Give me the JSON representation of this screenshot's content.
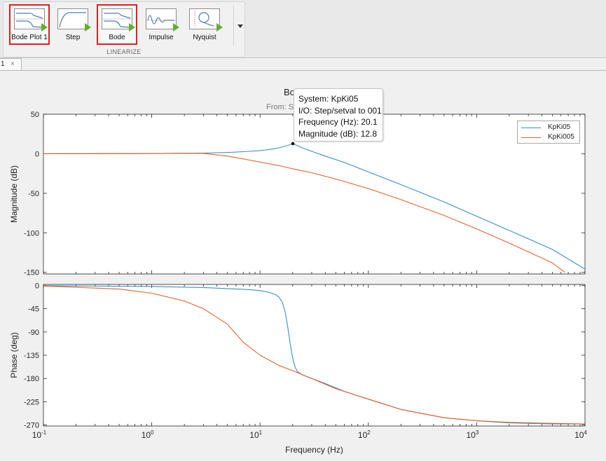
{
  "toolstrip": {
    "section_label": "LINEARIZE",
    "buttons": [
      {
        "label": "Bode Plot 1",
        "icon": "bode-plot-icon",
        "selected": true
      },
      {
        "label": "Step",
        "icon": "step-response-icon",
        "selected": false
      },
      {
        "label": "Bode",
        "icon": "bode-plot-icon",
        "selected": true
      },
      {
        "label": "Impulse",
        "icon": "impulse-response-icon",
        "selected": false
      },
      {
        "label": "Nyquist",
        "icon": "nyquist-plot-icon",
        "selected": false
      }
    ],
    "more_icon": "chevron-down-icon"
  },
  "doc_tab": {
    "label": "1",
    "close_glyph": "×"
  },
  "figure": {
    "title_fragment": "Bo",
    "subtitle_fragment": "From: S"
  },
  "datatip": {
    "system": "System: KpKi05",
    "io": "I/O: Step/setval to 001",
    "frequency": "Frequency (Hz): 20.1",
    "magnitude": "Magnitude (dB): 12.8"
  },
  "legend": [
    {
      "label": "KpKi05",
      "color": "#3b8fc4"
    },
    {
      "label": "KpKi005",
      "color": "#e2622f"
    }
  ],
  "colors": {
    "series_1": "#3b8fc4",
    "series_2": "#e2622f",
    "selection": "#e0201b"
  },
  "chart_data": [
    {
      "type": "line",
      "ylabel": "Magnitude (dB)",
      "xscale": "log",
      "xlim": [
        0.1,
        10000
      ],
      "ylim": [
        -152,
        50
      ],
      "yticks": [
        50,
        0,
        -50,
        -100,
        -150
      ],
      "grid": false,
      "legend_placement": "top-right",
      "series": [
        {
          "name": "KpKi05",
          "x": [
            0.1,
            1,
            3,
            5,
            8,
            10,
            12,
            15,
            18,
            20.1,
            25,
            30,
            40,
            60,
            100,
            200,
            500,
            1000,
            2000,
            5000,
            10000
          ],
          "y": [
            0,
            0.2,
            0.8,
            1.5,
            3,
            4,
            5.2,
            7.5,
            10.5,
            12.8,
            7,
            3,
            -3,
            -11,
            -23,
            -39,
            -61,
            -79,
            -97,
            -121,
            -146
          ]
        },
        {
          "name": "KpKi005",
          "x": [
            0.1,
            1,
            2,
            3,
            5,
            8,
            10,
            15,
            20,
            30,
            50,
            100,
            200,
            500,
            1000,
            2000,
            5000,
            6500
          ],
          "y": [
            0,
            0.3,
            0.6,
            0.5,
            -3,
            -8,
            -10.5,
            -15,
            -19,
            -24,
            -32,
            -44,
            -58,
            -78,
            -95,
            -113,
            -138,
            -150
          ]
        }
      ]
    },
    {
      "type": "line",
      "xlabel": "Frequency  (Hz)",
      "ylabel": "Phase (deg)",
      "xscale": "log",
      "xlim": [
        0.1,
        10000
      ],
      "ylim": [
        -272,
        2
      ],
      "yticks": [
        0,
        -45,
        -90,
        -135,
        -180,
        -225,
        -270
      ],
      "xticks": [
        "10-1",
        "100",
        "101",
        "102",
        "103",
        "104"
      ],
      "grid": false,
      "series": [
        {
          "name": "KpKi05",
          "x": [
            0.1,
            1,
            3,
            5,
            8,
            10,
            12,
            14,
            15,
            16,
            17,
            18,
            19,
            20,
            21,
            22,
            24,
            26,
            30,
            40,
            60,
            100,
            200,
            500,
            1000,
            2000,
            5000,
            10000
          ],
          "y": [
            -0.5,
            -2,
            -4,
            -6,
            -8,
            -10,
            -13,
            -18,
            -23,
            -32,
            -50,
            -80,
            -113,
            -140,
            -157,
            -166,
            -172,
            -175,
            -180,
            -190,
            -205,
            -220,
            -240,
            -256,
            -262,
            -266,
            -268,
            -268
          ]
        },
        {
          "name": "KpKi005",
          "x": [
            0.1,
            0.5,
            1,
            2,
            3,
            5,
            7,
            10,
            15,
            20,
            30,
            50,
            100,
            200,
            500,
            1000,
            2000,
            5000,
            10000
          ],
          "y": [
            -1,
            -7,
            -15,
            -30,
            -45,
            -75,
            -110,
            -135,
            -155,
            -165,
            -180,
            -200,
            -220,
            -240,
            -256,
            -262,
            -265,
            -267,
            -268
          ]
        }
      ]
    }
  ]
}
